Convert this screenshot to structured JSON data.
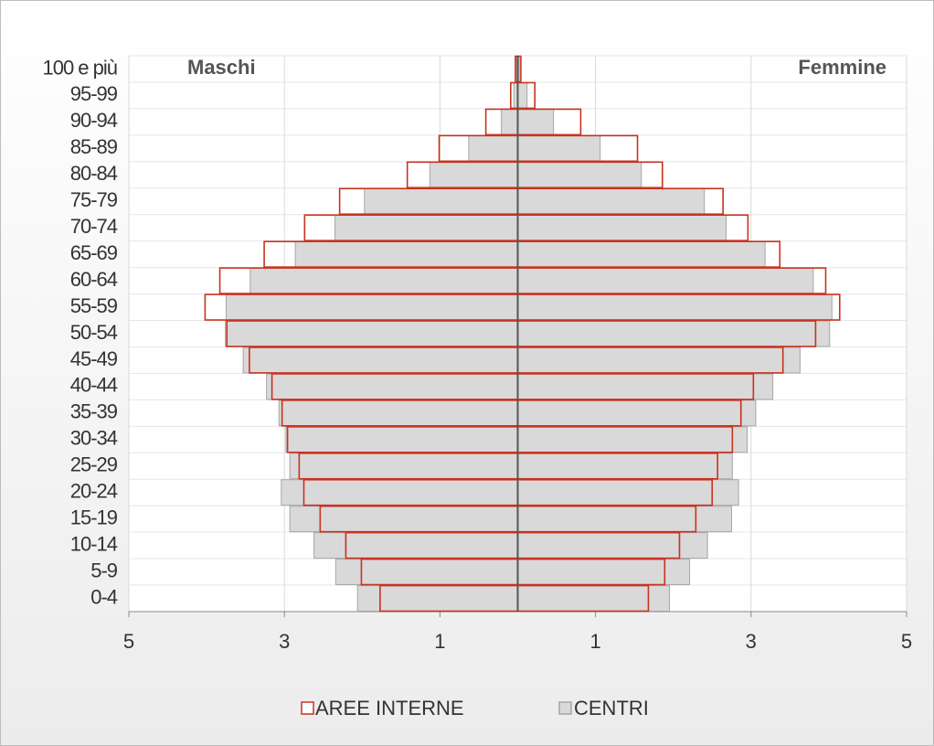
{
  "chart_data": {
    "type": "pyramid",
    "left_label": "Maschi",
    "right_label": "Femmine",
    "categories": [
      "0-4",
      "5-9",
      "10-14",
      "15-19",
      "20-24",
      "25-29",
      "30-34",
      "35-39",
      "40-44",
      "45-49",
      "50-54",
      "55-59",
      "60-64",
      "65-69",
      "70-74",
      "75-79",
      "80-84",
      "85-89",
      "90-94",
      "95-99",
      "100  e più"
    ],
    "series": [
      {
        "name": "CENTRI",
        "color": "#d9d9d9",
        "edge": "#a6a6a6",
        "male": [
          -2.06,
          -2.34,
          -2.62,
          -2.93,
          -3.04,
          -2.93,
          -2.98,
          -3.07,
          -3.23,
          -3.53,
          -3.76,
          -3.75,
          -3.44,
          -2.86,
          -2.35,
          -1.97,
          -1.13,
          -0.63,
          -0.21,
          -0.05,
          -0.02
        ],
        "female": [
          1.95,
          2.21,
          2.44,
          2.75,
          2.84,
          2.76,
          2.95,
          3.06,
          3.28,
          3.63,
          4.01,
          4.04,
          3.8,
          3.18,
          2.68,
          2.4,
          1.59,
          1.06,
          0.46,
          0.12,
          0.02
        ]
      },
      {
        "name": "AREE INTERNE",
        "color": "#c8321f",
        "male": [
          -1.77,
          -2.01,
          -2.21,
          -2.54,
          -2.75,
          -2.81,
          -2.96,
          -3.03,
          -3.16,
          -3.45,
          -3.74,
          -4.02,
          -3.83,
          -3.26,
          -2.74,
          -2.29,
          -1.42,
          -1.01,
          -0.41,
          -0.09,
          -0.03
        ],
        "female": [
          1.68,
          1.89,
          2.08,
          2.29,
          2.5,
          2.57,
          2.76,
          2.87,
          3.03,
          3.41,
          3.83,
          4.14,
          3.96,
          3.37,
          2.96,
          2.64,
          1.86,
          1.54,
          0.81,
          0.22,
          0.04
        ]
      }
    ],
    "xlim": [
      -5,
      5
    ],
    "xticks": [
      {
        "value": -5,
        "label": "5"
      },
      {
        "value": -3,
        "label": "3"
      },
      {
        "value": -1,
        "label": "1"
      },
      1,
      3,
      5
    ],
    "grid": true
  }
}
